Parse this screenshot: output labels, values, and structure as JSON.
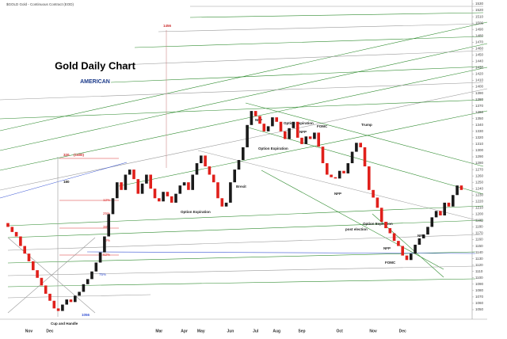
{
  "chart_data": {
    "type": "candlestick",
    "header": "$GOLD Gold - Continuous Contract (EOD)",
    "title": "Gold Daily Chart",
    "logo": "AMERICAN",
    "categories": [
      null,
      null,
      null,
      null,
      null,
      "Nov",
      null,
      null,
      null,
      null,
      "Dec",
      null,
      null,
      null,
      null,
      null,
      null,
      null,
      null,
      null,
      null,
      null,
      null,
      null,
      null,
      null,
      null,
      null,
      null,
      null,
      null,
      null,
      null,
      null,
      null,
      null,
      "Mar",
      null,
      null,
      null,
      null,
      null,
      "Apr",
      null,
      null,
      null,
      "May",
      null,
      null,
      null,
      null,
      null,
      null,
      "Jun",
      null,
      null,
      null,
      null,
      null,
      "Jul",
      null,
      null,
      null,
      null,
      "Aug",
      null,
      null,
      null,
      null,
      null,
      "Sep",
      null,
      null,
      null,
      null,
      null,
      null,
      null,
      null,
      "Oct",
      null,
      null,
      null,
      null,
      null,
      null,
      null,
      "Nov",
      null,
      null,
      null,
      null,
      null,
      null,
      "Dec",
      null,
      null,
      null,
      null,
      null,
      null,
      null,
      null,
      null,
      null,
      null,
      null,
      null,
      null
    ],
    "open": [
      1186,
      1180,
      1172,
      1165,
      1150,
      1138,
      1126,
      1112,
      1100,
      1088,
      1075,
      1064,
      1052,
      1048,
      1058,
      1066,
      1062,
      1072,
      1078,
      1090,
      1098,
      1110,
      1124,
      1140,
      1165,
      1200,
      1225,
      1250,
      1238,
      1262,
      1270,
      1255,
      1232,
      1248,
      1262,
      1240,
      1225,
      1220,
      1235,
      1228,
      1218,
      1232,
      1245,
      1250,
      1238,
      1262,
      1280,
      1292,
      1275,
      1262,
      1250,
      1225,
      1212,
      1218,
      1250,
      1270,
      1285,
      1305,
      1340,
      1362,
      1354,
      1342,
      1330,
      1338,
      1352,
      1345,
      1330,
      1318,
      1335,
      1345,
      1320,
      1310,
      1322,
      1318,
      1328,
      1306,
      1280,
      1262,
      1258,
      1256,
      1268,
      1264,
      1280,
      1298,
      1312,
      1305,
      1275,
      1238,
      1226,
      1210,
      1188,
      1178,
      1170,
      1158,
      1150,
      1135,
      1128,
      1138,
      1152,
      1162,
      1168,
      1180,
      1195,
      1205,
      1198,
      1218,
      1212,
      1230,
      1245
    ],
    "close": [
      1180,
      1172,
      1165,
      1150,
      1138,
      1126,
      1112,
      1100,
      1088,
      1075,
      1064,
      1052,
      1048,
      1058,
      1066,
      1062,
      1072,
      1078,
      1090,
      1098,
      1110,
      1124,
      1140,
      1165,
      1200,
      1225,
      1250,
      1238,
      1262,
      1270,
      1255,
      1232,
      1248,
      1262,
      1240,
      1225,
      1220,
      1235,
      1228,
      1218,
      1232,
      1245,
      1250,
      1238,
      1262,
      1280,
      1292,
      1275,
      1262,
      1250,
      1225,
      1212,
      1218,
      1250,
      1270,
      1285,
      1305,
      1340,
      1362,
      1354,
      1342,
      1330,
      1338,
      1352,
      1345,
      1330,
      1318,
      1335,
      1345,
      1320,
      1310,
      1322,
      1318,
      1328,
      1306,
      1280,
      1262,
      1258,
      1256,
      1268,
      1264,
      1280,
      1298,
      1312,
      1305,
      1275,
      1238,
      1226,
      1210,
      1188,
      1178,
      1170,
      1158,
      1150,
      1135,
      1128,
      1138,
      1152,
      1162,
      1168,
      1180,
      1195,
      1205,
      1198,
      1218,
      1212,
      1230,
      1245,
      1238
    ],
    "up_color": "#1a1a1a",
    "down_color": "#e0201b",
    "ylim": [
      1045,
      1535
    ],
    "yticks": [
      1050,
      1060,
      1070,
      1080,
      1090,
      1100,
      1110,
      1120,
      1130,
      1140,
      1150,
      1160,
      1170,
      1180,
      1190,
      1200,
      1210,
      1220,
      1230,
      1240,
      1250,
      1260,
      1270,
      1280,
      1290,
      1300,
      1310,
      1320,
      1330,
      1340,
      1350,
      1360,
      1370,
      1380,
      1390,
      1400,
      1410,
      1420,
      1430,
      1440,
      1450,
      1460,
      1470,
      1480,
      1490,
      1500,
      1510,
      1520,
      1530
    ],
    "grid": false,
    "annotations": [
      "1456",
      "320",
      "(1490)",
      "180",
      "12%",
      "25%",
      "38%",
      "50%",
      "62%",
      "75%",
      "1056",
      "Cup and Handle",
      "Option Expiration",
      "Brexit",
      "Option Expiration",
      "NFP",
      "Option Expiration",
      "NFP",
      "FOMC",
      "Trump",
      "NFP",
      "post election",
      "Option Expiration",
      "NFP",
      "FOMC",
      "NFP"
    ]
  }
}
